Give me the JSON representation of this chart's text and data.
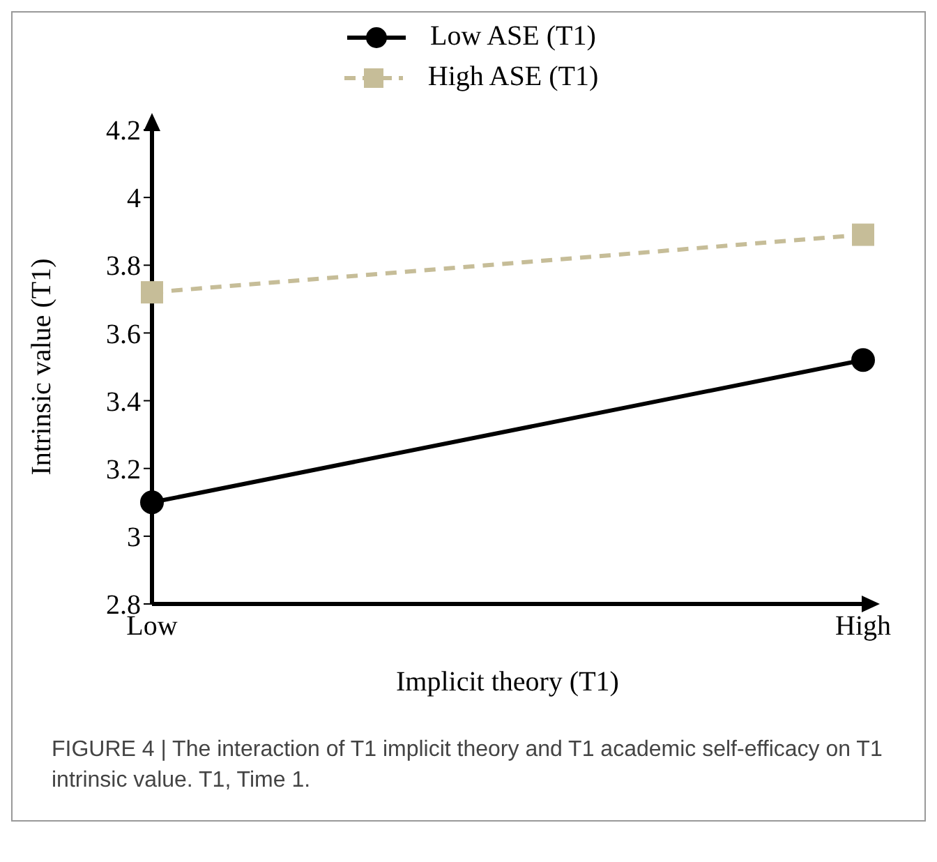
{
  "chart_data": {
    "type": "line",
    "xlabel": "Implicit theory (T1)",
    "ylabel": "Intrinsic value (T1)",
    "categories": [
      "Low",
      "High"
    ],
    "series": [
      {
        "name": "Low ASE (T1)",
        "color": "#000000",
        "values": [
          3.1,
          3.52
        ],
        "marker": "circle",
        "line_style": "solid"
      },
      {
        "name": "High ASE (T1)",
        "color": "#c6bd98",
        "values": [
          3.72,
          3.89
        ],
        "marker": "square",
        "line_style": "dashed"
      }
    ],
    "ylim": [
      2.8,
      4.2
    ],
    "yticks": [
      2.8,
      3,
      3.2,
      3.4,
      3.6,
      3.8,
      4,
      4.2
    ],
    "grid": false,
    "legend": "top",
    "annotations": [
      "FIGURE 4 | The interaction of T1 implicit theory and T1 academic self-efficacy on T1 intrinsic value. T1, Time 1."
    ]
  }
}
